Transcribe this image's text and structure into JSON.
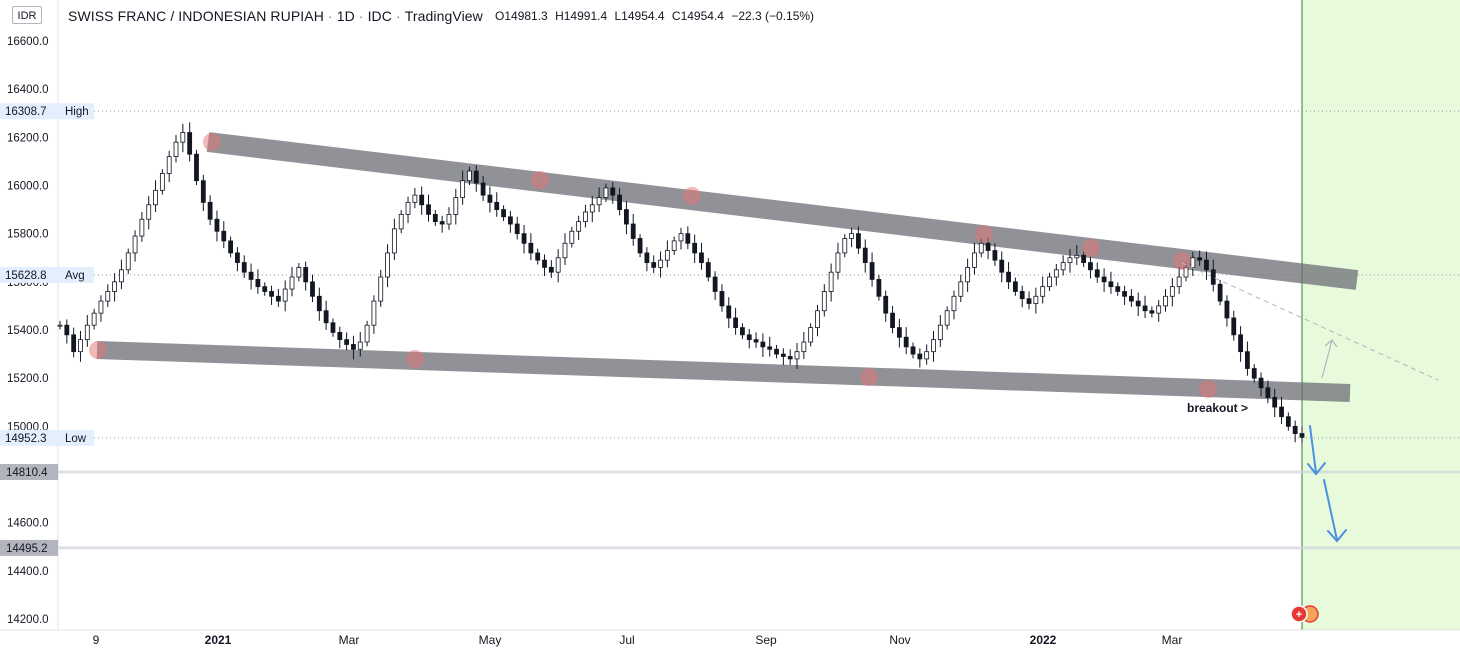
{
  "header": {
    "currency_badge": "IDR",
    "pair": "SWISS FRANC / INDONESIAN RUPIAH",
    "interval": "1D",
    "source": "IDC",
    "platform": "TradingView",
    "ohlc": {
      "o_label": "O",
      "o": "14981.3",
      "h_label": "H",
      "h": "14991.4",
      "l_label": "L",
      "l": "14954.4",
      "c_label": "C",
      "c": "14954.4",
      "change": "−22.3 (−0.15%)"
    }
  },
  "chart_data": {
    "type": "candlestick",
    "y_ticks": [
      "16600.0",
      "16400.0",
      "16200.0",
      "16000.0",
      "15800.0",
      "15600.0",
      "15400.0",
      "15200.0",
      "15000.0",
      "14800.0",
      "14600.0",
      "14400.0",
      "14200.0"
    ],
    "ylim": [
      14200,
      16600
    ],
    "x_tick_labels": [
      "9",
      "2021",
      "Mar",
      "May",
      "Jul",
      "Sep",
      "Nov",
      "2022",
      "Mar"
    ],
    "markers": {
      "high": {
        "label": "High",
        "value": "16308.7"
      },
      "avg": {
        "label": "Avg",
        "value": "15628.8"
      },
      "low": {
        "label": "Low",
        "value": "14952.3"
      }
    },
    "price_levels": [
      "14810.4",
      "14495.2"
    ],
    "annotation": "breakout  >",
    "close_series": [
      15420,
      15380,
      15310,
      15360,
      15420,
      15470,
      15520,
      15560,
      15600,
      15650,
      15720,
      15790,
      15860,
      15920,
      15980,
      16050,
      16120,
      16180,
      16220,
      16130,
      16020,
      15930,
      15860,
      15810,
      15770,
      15720,
      15680,
      15640,
      15610,
      15580,
      15560,
      15540,
      15520,
      15570,
      15620,
      15660,
      15600,
      15540,
      15480,
      15430,
      15390,
      15360,
      15340,
      15320,
      15350,
      15420,
      15520,
      15620,
      15720,
      15820,
      15880,
      15930,
      15960,
      15920,
      15880,
      15850,
      15840,
      15880,
      15950,
      16020,
      16060,
      16010,
      15960,
      15930,
      15900,
      15870,
      15840,
      15800,
      15760,
      15720,
      15690,
      15660,
      15640,
      15700,
      15760,
      15810,
      15850,
      15890,
      15920,
      15950,
      15990,
      15960,
      15900,
      15840,
      15780,
      15720,
      15680,
      15660,
      15690,
      15730,
      15770,
      15800,
      15760,
      15720,
      15680,
      15620,
      15560,
      15500,
      15450,
      15410,
      15380,
      15360,
      15350,
      15330,
      15320,
      15300,
      15290,
      15280,
      15310,
      15350,
      15410,
      15480,
      15560,
      15640,
      15720,
      15780,
      15800,
      15740,
      15680,
      15610,
      15540,
      15470,
      15410,
      15370,
      15330,
      15300,
      15280,
      15310,
      15360,
      15420,
      15480,
      15540,
      15600,
      15660,
      15720,
      15760,
      15730,
      15690,
      15640,
      15600,
      15560,
      15530,
      15510,
      15540,
      15580,
      15620,
      15650,
      15680,
      15700,
      15710,
      15680,
      15650,
      15620,
      15600,
      15580,
      15560,
      15540,
      15520,
      15500,
      15480,
      15470,
      15500,
      15540,
      15580,
      15620,
      15660,
      15700,
      15690,
      15650,
      15590,
      15520,
      15450,
      15380,
      15310,
      15240,
      15200,
      15160,
      15120,
      15080,
      15040,
      15000,
      14970,
      14954.4
    ]
  }
}
